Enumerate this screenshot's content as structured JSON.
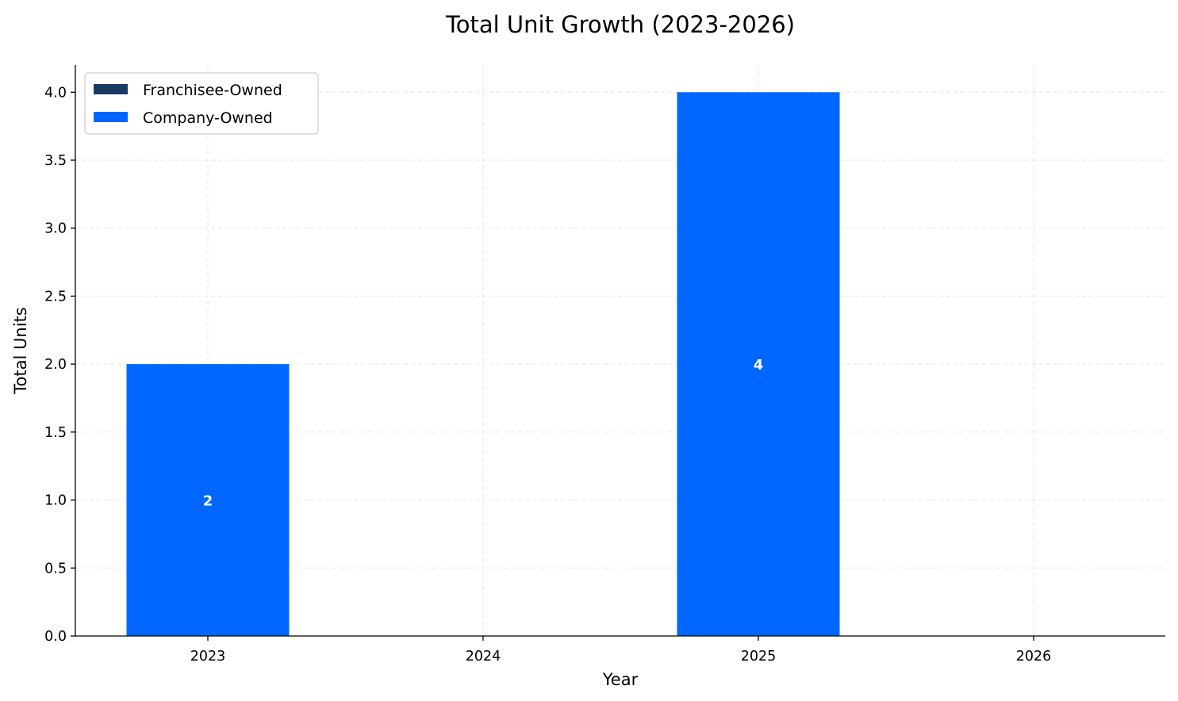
{
  "chart_data": {
    "type": "bar",
    "stacked": true,
    "title": "Total Unit Growth (2023-2026)",
    "xlabel": "Year",
    "ylabel": "Total Units",
    "categories": [
      "2023",
      "2024",
      "2025",
      "2026"
    ],
    "series": [
      {
        "name": "Franchisee-Owned",
        "values": [
          0,
          0,
          0,
          0
        ],
        "color": "#1a3a64"
      },
      {
        "name": "Company-Owned",
        "values": [
          2,
          0,
          4,
          0
        ],
        "color": "#0066ff"
      }
    ],
    "data_labels": [
      "2",
      "",
      "4",
      ""
    ],
    "ylim": [
      0,
      4.2
    ],
    "yticks": [
      0.0,
      0.5,
      1.0,
      1.5,
      2.0,
      2.5,
      3.0,
      3.5,
      4.0
    ],
    "ytick_labels": [
      "0.0",
      "0.5",
      "1.0",
      "1.5",
      "2.0",
      "2.5",
      "3.0",
      "3.5",
      "4.0"
    ],
    "grid": true,
    "legend_position": "top-left"
  }
}
